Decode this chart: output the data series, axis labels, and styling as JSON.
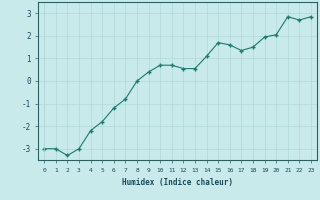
{
  "x": [
    0,
    1,
    2,
    3,
    4,
    5,
    6,
    7,
    8,
    9,
    10,
    11,
    12,
    13,
    14,
    15,
    16,
    17,
    18,
    19,
    20,
    21,
    22,
    23
  ],
  "y": [
    -3.0,
    -3.0,
    -3.3,
    -3.0,
    -2.2,
    -1.8,
    -1.2,
    -0.8,
    0.0,
    0.4,
    0.7,
    0.7,
    0.55,
    0.55,
    1.1,
    1.7,
    1.6,
    1.35,
    1.5,
    1.95,
    2.05,
    2.85,
    2.7,
    2.85
  ],
  "xlabel": "Humidex (Indice chaleur)",
  "ylim": [
    -3.5,
    3.5
  ],
  "xlim": [
    -0.5,
    23.5
  ],
  "yticks": [
    -3,
    -2,
    -1,
    0,
    1,
    2,
    3
  ],
  "xticks": [
    0,
    1,
    2,
    3,
    4,
    5,
    6,
    7,
    8,
    9,
    10,
    11,
    12,
    13,
    14,
    15,
    16,
    17,
    18,
    19,
    20,
    21,
    22,
    23
  ],
  "line_color": "#1a7a6e",
  "marker_color": "#1a7a6e",
  "bg_color": "#c8eaea",
  "grid_color": "#b0d8d8",
  "axis_color": "#2a6060",
  "label_color": "#1a4a5a",
  "font_family": "monospace"
}
